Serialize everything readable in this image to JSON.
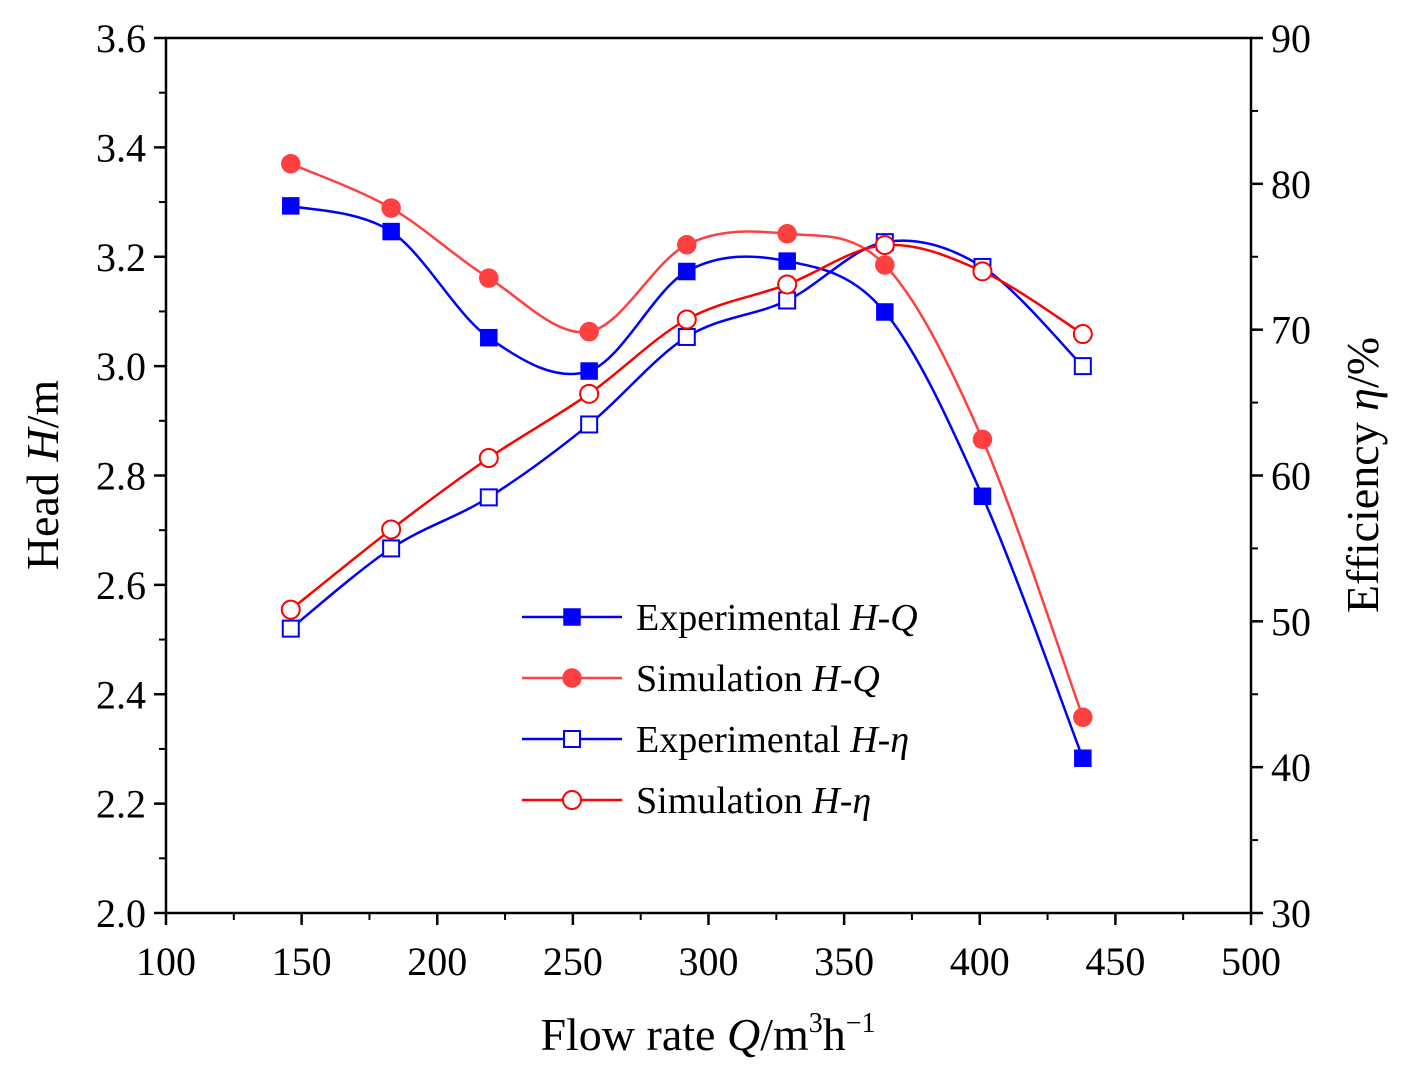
{
  "chart_data": {
    "type": "line",
    "x": [
      146,
      183,
      219,
      256,
      292,
      329,
      365,
      401,
      438
    ],
    "xlabel": {
      "prefix": "Flow rate ",
      "var": "Q",
      "unit": "/m",
      "sup1": "3",
      "mid": "h",
      "sup2": "−1"
    },
    "ylabel_left": {
      "prefix": "Head ",
      "var": "H",
      "unit": "/m"
    },
    "ylabel_right": {
      "prefix": "Efficiency ",
      "var": "η",
      "unit": "/%"
    },
    "xlim": [
      100,
      500
    ],
    "ylim_left": [
      2.0,
      3.6
    ],
    "ylim_right": [
      30,
      90
    ],
    "xticks": [
      "100",
      "150",
      "200",
      "250",
      "300",
      "350",
      "400",
      "450",
      "500"
    ],
    "yticks_left": [
      "2.0",
      "2.2",
      "2.4",
      "2.6",
      "2.8",
      "3.0",
      "3.2",
      "3.4",
      "3.6"
    ],
    "yticks_right": [
      "30",
      "40",
      "50",
      "60",
      "70",
      "80",
      "90"
    ],
    "legend_position": "center",
    "series": [
      {
        "name": "Experimental",
        "var": "H-Q",
        "axis": "left",
        "color": "#0000ff",
        "marker": "square-filled",
        "values": [
          3.293,
          3.246,
          3.052,
          2.991,
          3.173,
          3.192,
          3.099,
          2.762,
          2.283
        ]
      },
      {
        "name": "Simulation",
        "var": "H-Q",
        "axis": "left",
        "color": "#ff4040",
        "marker": "circle-filled",
        "values": [
          3.37,
          3.289,
          3.161,
          3.063,
          3.222,
          3.242,
          3.185,
          2.866,
          2.358
        ]
      },
      {
        "name": "Experimental",
        "var": "H-η",
        "axis": "right",
        "color": "#0000ff",
        "marker": "square-open",
        "values": [
          49.5,
          55.0,
          58.5,
          63.5,
          69.5,
          72.0,
          76.0,
          74.3,
          67.5
        ]
      },
      {
        "name": "Simulation",
        "var": "H-η",
        "axis": "right",
        "color": "#ff0000",
        "marker": "circle-open",
        "values": [
          50.8,
          56.3,
          61.2,
          65.6,
          70.7,
          73.1,
          75.8,
          74.0,
          69.7
        ]
      }
    ]
  }
}
